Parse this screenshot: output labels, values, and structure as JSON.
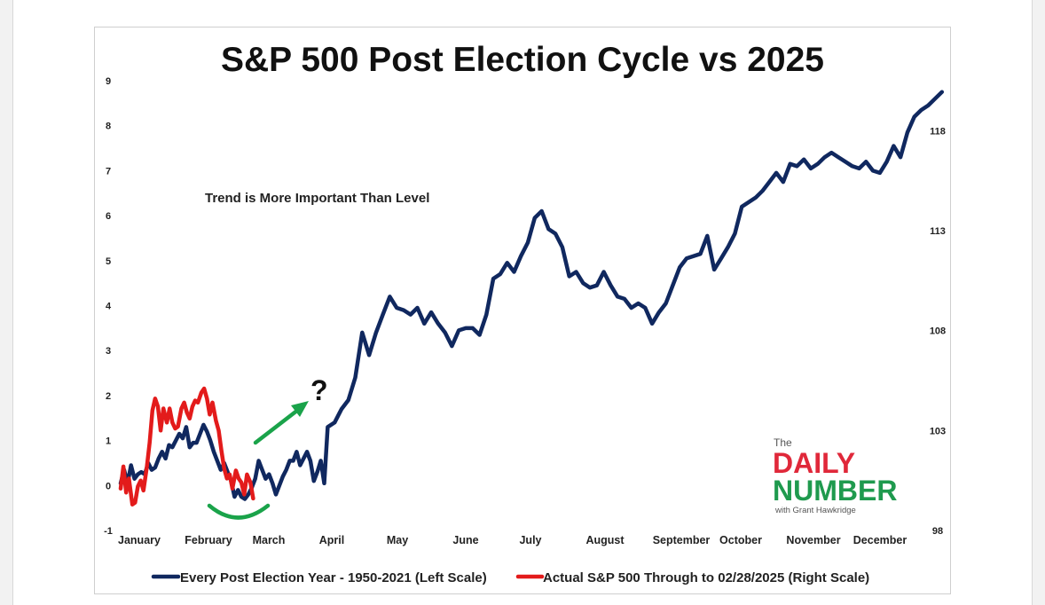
{
  "chart_data": {
    "type": "line",
    "title": "S&P 500 Post Election Cycle vs 2025",
    "annotation": "Trend is More Important Than Level",
    "question_mark": "?",
    "months": [
      "January",
      "February",
      "March",
      "April",
      "May",
      "June",
      "July",
      "August",
      "September",
      "October",
      "November",
      "December"
    ],
    "left_axis": {
      "ticks": [
        "9",
        "8",
        "7",
        "6",
        "5",
        "4",
        "3",
        "2",
        "1",
        "0",
        "-1"
      ],
      "ylim": [
        -1,
        9
      ]
    },
    "right_axis": {
      "ticks": [
        "118",
        "113",
        "108",
        "103",
        "98"
      ],
      "ylim": [
        98,
        120.5
      ]
    },
    "series": [
      {
        "name": "Every Post Election Year - 1950-2021 (Left Scale)",
        "axis": "left",
        "color": "#10285f",
        "x": [
          0,
          0.05,
          0.1,
          0.15,
          0.2,
          0.25,
          0.3,
          0.35,
          0.4,
          0.45,
          0.5,
          0.55,
          0.6,
          0.65,
          0.7,
          0.75,
          0.8,
          0.85,
          0.9,
          0.95,
          1.0,
          1.05,
          1.1,
          1.15,
          1.2,
          1.25,
          1.3,
          1.35,
          1.4,
          1.45,
          1.5,
          1.55,
          1.6,
          1.65,
          1.7,
          1.75,
          1.8,
          1.85,
          1.9,
          1.95,
          2.0,
          2.05,
          2.1,
          2.15,
          2.2,
          2.25,
          2.3,
          2.35,
          2.4,
          2.45,
          2.5,
          2.55,
          2.6,
          2.65,
          2.7,
          2.75,
          2.8,
          2.85,
          2.9,
          2.95,
          3.0,
          3.1,
          3.2,
          3.3,
          3.4,
          3.5,
          3.6,
          3.7,
          3.8,
          3.9,
          4.0,
          4.1,
          4.2,
          4.3,
          4.4,
          4.5,
          4.6,
          4.7,
          4.8,
          4.9,
          5.0,
          5.1,
          5.2,
          5.3,
          5.4,
          5.5,
          5.6,
          5.7,
          5.8,
          5.9,
          6.0,
          6.1,
          6.2,
          6.3,
          6.4,
          6.5,
          6.6,
          6.7,
          6.8,
          6.9,
          7.0,
          7.1,
          7.2,
          7.3,
          7.4,
          7.5,
          7.6,
          7.7,
          7.8,
          7.9,
          8.0,
          8.1,
          8.2,
          8.3,
          8.4,
          8.5,
          8.6,
          8.7,
          8.8,
          8.9,
          9.0,
          9.1,
          9.2,
          9.3,
          9.4,
          9.5,
          9.6,
          9.7,
          9.8,
          9.9,
          10.0,
          10.1,
          10.2,
          10.3,
          10.4,
          10.5,
          10.6,
          10.7,
          10.8,
          10.9,
          11.0,
          11.1,
          11.2,
          11.3,
          11.4,
          11.5,
          11.6,
          11.7,
          11.8,
          11.9
        ],
        "values": [
          0.05,
          0.35,
          0.05,
          0.45,
          0.15,
          0.25,
          0.3,
          0.25,
          0.5,
          0.35,
          0.4,
          0.6,
          0.75,
          0.6,
          0.9,
          0.85,
          1.0,
          1.15,
          1.05,
          1.3,
          0.85,
          0.95,
          0.95,
          1.15,
          1.35,
          1.2,
          1.0,
          0.75,
          0.55,
          0.35,
          0.5,
          0.3,
          0.1,
          -0.25,
          -0.1,
          -0.25,
          -0.3,
          -0.2,
          -0.05,
          0.15,
          0.55,
          0.35,
          0.15,
          0.25,
          0.05,
          -0.2,
          0.0,
          0.2,
          0.35,
          0.55,
          0.55,
          0.75,
          0.45,
          0.6,
          0.75,
          0.55,
          0.1,
          0.3,
          0.55,
          0.05,
          1.3,
          1.4,
          1.7,
          1.9,
          2.4,
          3.4,
          2.9,
          3.4,
          3.8,
          4.2,
          3.95,
          3.9,
          3.8,
          3.95,
          3.6,
          3.85,
          3.6,
          3.4,
          3.1,
          3.45,
          3.5,
          3.5,
          3.35,
          3.8,
          4.6,
          4.7,
          4.95,
          4.75,
          5.1,
          5.4,
          5.95,
          6.1,
          5.7,
          5.6,
          5.3,
          4.65,
          4.75,
          4.5,
          4.4,
          4.45,
          4.75,
          4.45,
          4.2,
          4.15,
          3.95,
          4.05,
          3.95,
          3.6,
          3.85,
          4.05,
          4.45,
          4.85,
          5.05,
          5.1,
          5.15,
          5.55,
          4.8,
          5.05,
          5.3,
          5.6,
          6.2,
          6.3,
          6.4,
          6.55,
          6.75,
          6.95,
          6.75,
          7.15,
          7.1,
          7.25,
          7.05,
          7.15,
          7.3,
          7.4,
          7.3,
          7.2,
          7.1,
          7.05,
          7.2,
          7.0,
          6.95,
          7.2,
          7.55,
          7.3,
          7.85,
          8.2,
          8.35,
          8.45,
          8.6,
          8.75
        ]
      },
      {
        "name": "Actual S&P 500 Through to 02/28/2025 (Right Scale)",
        "axis": "right",
        "color": "#e31b1b",
        "x": [
          0,
          0.04,
          0.08,
          0.12,
          0.17,
          0.21,
          0.25,
          0.29,
          0.33,
          0.38,
          0.42,
          0.46,
          0.5,
          0.54,
          0.58,
          0.62,
          0.67,
          0.71,
          0.75,
          0.79,
          0.83,
          0.88,
          0.92,
          0.96,
          1.0,
          1.04,
          1.08,
          1.12,
          1.17,
          1.21,
          1.25,
          1.29,
          1.33,
          1.38,
          1.42,
          1.46,
          1.5,
          1.54,
          1.58,
          1.62,
          1.67,
          1.71,
          1.75,
          1.79,
          1.83,
          1.88,
          1.92
        ],
        "values": [
          100.1,
          101.2,
          99.9,
          100.6,
          99.3,
          99.4,
          100.2,
          100.5,
          100.0,
          101.2,
          102.4,
          104.0,
          104.6,
          104.2,
          103.0,
          104.1,
          103.4,
          104.1,
          103.4,
          103.1,
          103.2,
          104.1,
          104.4,
          103.9,
          103.6,
          104.2,
          104.5,
          104.4,
          104.9,
          105.1,
          104.6,
          103.8,
          104.4,
          103.5,
          103.0,
          102.0,
          101.1,
          100.6,
          100.8,
          100.1,
          101.0,
          100.6,
          100.4,
          99.8,
          100.8,
          100.4,
          99.6
        ]
      }
    ],
    "arrow_annotation": "green-upward-arrow",
    "arc_annotation": "green-smile-arc"
  },
  "legend": {
    "item1": "Every Post Election Year - 1950-2021 (Left Scale)",
    "item2": "Actual S&P 500 Through to 02/28/2025 (Right Scale)"
  },
  "logo": {
    "the": "The",
    "daily": "DAILY",
    "number": "NUMBER",
    "byline": "with Grant Hawkridge",
    "colors": {
      "daily": "#e0283a",
      "number": "#1f9a4e",
      "grey": "#555555"
    }
  }
}
